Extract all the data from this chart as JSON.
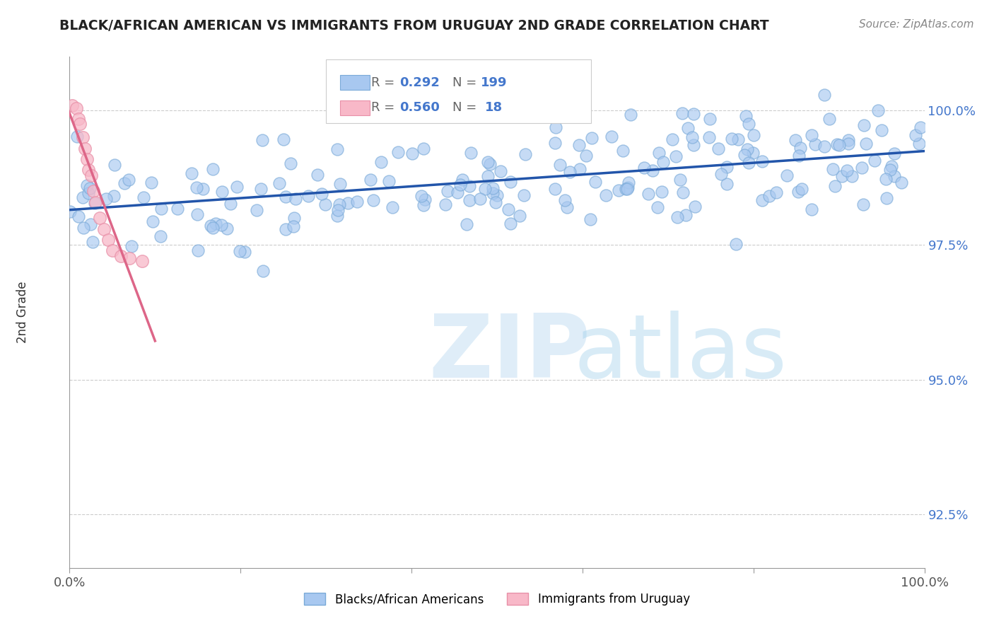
{
  "title": "BLACK/AFRICAN AMERICAN VS IMMIGRANTS FROM URUGUAY 2ND GRADE CORRELATION CHART",
  "source_text": "Source: ZipAtlas.com",
  "ylabel": "2nd Grade",
  "watermark_zip": "ZIP",
  "watermark_atlas": "atlas",
  "x_min": 0.0,
  "x_max": 100.0,
  "y_min": 91.5,
  "y_max": 101.0,
  "yticks": [
    92.5,
    95.0,
    97.5,
    100.0
  ],
  "ytick_labels": [
    "92.5%",
    "95.0%",
    "97.5%",
    "100.0%"
  ],
  "blue_R": 0.292,
  "blue_N": 199,
  "pink_R": 0.56,
  "pink_N": 18,
  "blue_face_color": "#a8c8f0",
  "blue_edge_color": "#7aaad8",
  "pink_face_color": "#f8b8c8",
  "pink_edge_color": "#e890a8",
  "blue_line_color": "#2255aa",
  "pink_line_color": "#dd6688",
  "legend_blue_label": "Blacks/African Americans",
  "legend_pink_label": "Immigrants from Uruguay",
  "title_color": "#222222",
  "axis_label_color": "#333333",
  "tick_label_color_right": "#4477cc",
  "grid_color": "#cccccc",
  "background_color": "#ffffff",
  "source_color": "#888888"
}
